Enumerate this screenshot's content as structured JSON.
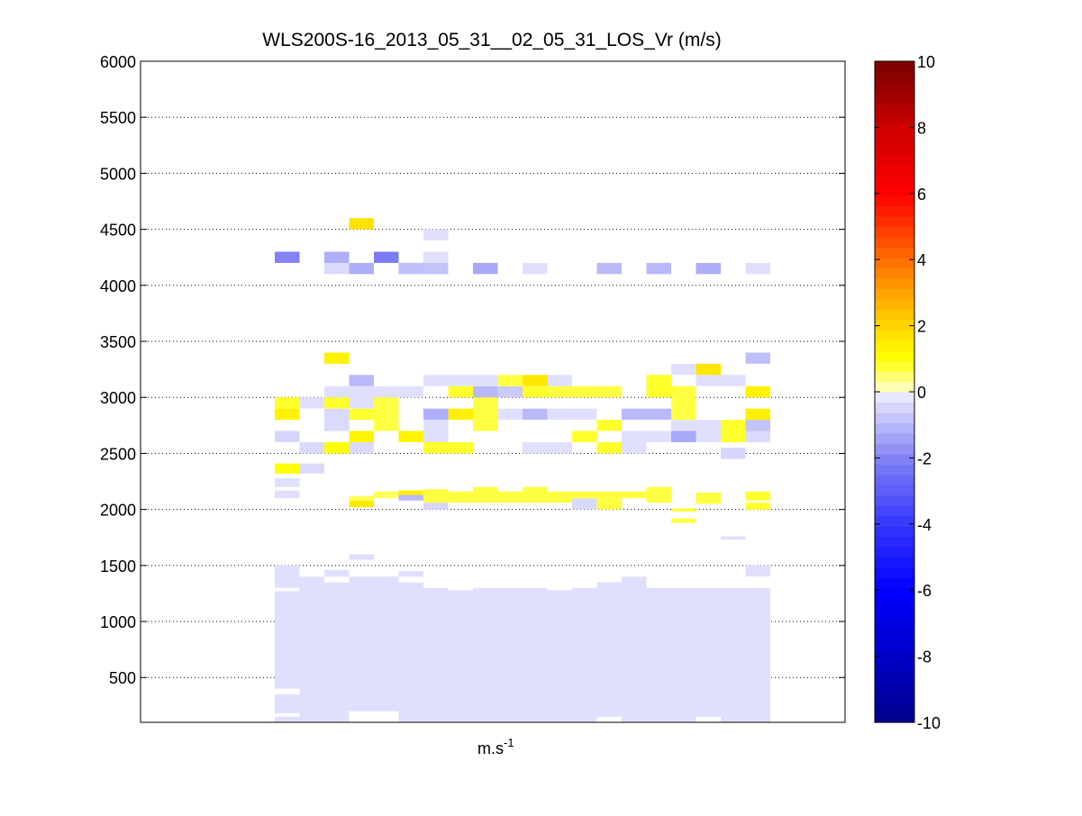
{
  "chart_data": {
    "type": "heatmap",
    "title": "WLS200S-16_2013_05_31__02_05_31_LOS_Vr (m/s)",
    "xlabel_base": "m.s",
    "xlabel_sup": "-1",
    "ylabel": "",
    "ylim": [
      100,
      6000
    ],
    "yticks": [
      500,
      1000,
      1500,
      2000,
      2500,
      3000,
      3500,
      4000,
      4500,
      5000,
      5500,
      6000
    ],
    "grid": "horizontal dotted",
    "n_columns": 28,
    "colorbar": {
      "min": -10,
      "max": 10,
      "ticks": [
        -10,
        -8,
        -6,
        -4,
        -2,
        0,
        2,
        4,
        6,
        8,
        10
      ],
      "colormap": "blue-white-yellow-red"
    },
    "cells": [
      {
        "col": 5,
        "y0": 100,
        "y1": 150,
        "v": -0.3
      },
      {
        "col": 5,
        "y0": 180,
        "y1": 350,
        "v": -0.3
      },
      {
        "col": 5,
        "y0": 400,
        "y1": 1270,
        "v": -0.3
      },
      {
        "col": 5,
        "y0": 1300,
        "y1": 1500,
        "v": -0.3
      },
      {
        "col": 5,
        "y0": 2100,
        "y1": 2170,
        "v": -0.3
      },
      {
        "col": 5,
        "y0": 2200,
        "y1": 2280,
        "v": -0.3
      },
      {
        "col": 5,
        "y0": 2320,
        "y1": 2410,
        "v": 1.0
      },
      {
        "col": 5,
        "y0": 2600,
        "y1": 2700,
        "v": -0.5
      },
      {
        "col": 5,
        "y0": 2800,
        "y1": 2900,
        "v": 1.3
      },
      {
        "col": 5,
        "y0": 2900,
        "y1": 3000,
        "v": 0.8
      },
      {
        "col": 5,
        "y0": 4200,
        "y1": 4300,
        "v": -2.0
      },
      {
        "col": 6,
        "y0": 100,
        "y1": 1400,
        "v": -0.3
      },
      {
        "col": 6,
        "y0": 2320,
        "y1": 2410,
        "v": -0.4
      },
      {
        "col": 6,
        "y0": 2500,
        "y1": 2600,
        "v": -0.4
      },
      {
        "col": 6,
        "y0": 2900,
        "y1": 3000,
        "v": -0.3
      },
      {
        "col": 7,
        "y0": 100,
        "y1": 1350,
        "v": -0.3
      },
      {
        "col": 7,
        "y0": 1400,
        "y1": 1460,
        "v": -0.3
      },
      {
        "col": 7,
        "y0": 2500,
        "y1": 2600,
        "v": 1.0
      },
      {
        "col": 7,
        "y0": 2700,
        "y1": 2900,
        "v": -0.4
      },
      {
        "col": 7,
        "y0": 2900,
        "y1": 3000,
        "v": 0.8
      },
      {
        "col": 7,
        "y0": 3000,
        "y1": 3100,
        "v": -0.3
      },
      {
        "col": 7,
        "y0": 3300,
        "y1": 3400,
        "v": 1.3
      },
      {
        "col": 7,
        "y0": 4100,
        "y1": 4200,
        "v": -0.4
      },
      {
        "col": 7,
        "y0": 4200,
        "y1": 4300,
        "v": -1.2
      },
      {
        "col": 8,
        "y0": 200,
        "y1": 1400,
        "v": -0.3
      },
      {
        "col": 8,
        "y0": 1550,
        "y1": 1600,
        "v": -0.3
      },
      {
        "col": 8,
        "y0": 2020,
        "y1": 2080,
        "v": 1.5
      },
      {
        "col": 8,
        "y0": 2080,
        "y1": 2120,
        "v": 0.6
      },
      {
        "col": 8,
        "y0": 2500,
        "y1": 2600,
        "v": -0.4
      },
      {
        "col": 8,
        "y0": 2600,
        "y1": 2700,
        "v": 1.3
      },
      {
        "col": 8,
        "y0": 2800,
        "y1": 2900,
        "v": 0.8
      },
      {
        "col": 8,
        "y0": 2900,
        "y1": 3100,
        "v": -0.3
      },
      {
        "col": 8,
        "y0": 3100,
        "y1": 3200,
        "v": -1.0
      },
      {
        "col": 8,
        "y0": 4100,
        "y1": 4200,
        "v": -1.2
      },
      {
        "col": 8,
        "y0": 4500,
        "y1": 4600,
        "v": 1.7
      },
      {
        "col": 9,
        "y0": 200,
        "y1": 1400,
        "v": -0.3
      },
      {
        "col": 9,
        "y0": 2100,
        "y1": 2160,
        "v": 0.6
      },
      {
        "col": 9,
        "y0": 2700,
        "y1": 3000,
        "v": 0.7
      },
      {
        "col": 9,
        "y0": 3000,
        "y1": 3100,
        "v": -0.3
      },
      {
        "col": 9,
        "y0": 4200,
        "y1": 4300,
        "v": -2.2
      },
      {
        "col": 10,
        "y0": 100,
        "y1": 1350,
        "v": -0.3
      },
      {
        "col": 10,
        "y0": 1400,
        "y1": 1450,
        "v": -0.3
      },
      {
        "col": 10,
        "y0": 2080,
        "y1": 2130,
        "v": -1.0
      },
      {
        "col": 10,
        "y0": 2130,
        "y1": 2170,
        "v": 1.4
      },
      {
        "col": 10,
        "y0": 2600,
        "y1": 2700,
        "v": 1.3
      },
      {
        "col": 10,
        "y0": 3000,
        "y1": 3100,
        "v": -0.3
      },
      {
        "col": 10,
        "y0": 4100,
        "y1": 4200,
        "v": -0.9
      },
      {
        "col": 11,
        "y0": 100,
        "y1": 1300,
        "v": -0.3
      },
      {
        "col": 11,
        "y0": 2000,
        "y1": 2060,
        "v": -0.5
      },
      {
        "col": 11,
        "y0": 2060,
        "y1": 2180,
        "v": 0.7
      },
      {
        "col": 11,
        "y0": 2500,
        "y1": 2600,
        "v": 0.8
      },
      {
        "col": 11,
        "y0": 2600,
        "y1": 2800,
        "v": -0.3
      },
      {
        "col": 11,
        "y0": 2800,
        "y1": 2900,
        "v": -1.2
      },
      {
        "col": 11,
        "y0": 3100,
        "y1": 3200,
        "v": -0.3
      },
      {
        "col": 11,
        "y0": 4100,
        "y1": 4200,
        "v": -0.8
      },
      {
        "col": 11,
        "y0": 4200,
        "y1": 4300,
        "v": -0.3
      },
      {
        "col": 11,
        "y0": 4400,
        "y1": 4500,
        "v": -0.3
      },
      {
        "col": 12,
        "y0": 100,
        "y1": 1280,
        "v": -0.3
      },
      {
        "col": 12,
        "y0": 2060,
        "y1": 2160,
        "v": 0.7
      },
      {
        "col": 12,
        "y0": 2500,
        "y1": 2600,
        "v": 0.8
      },
      {
        "col": 12,
        "y0": 2800,
        "y1": 2900,
        "v": 1.4
      },
      {
        "col": 12,
        "y0": 3000,
        "y1": 3100,
        "v": 0.8
      },
      {
        "col": 12,
        "y0": 3100,
        "y1": 3200,
        "v": -0.3
      },
      {
        "col": 13,
        "y0": 100,
        "y1": 1300,
        "v": -0.3
      },
      {
        "col": 13,
        "y0": 2060,
        "y1": 2200,
        "v": 0.7
      },
      {
        "col": 13,
        "y0": 2700,
        "y1": 3000,
        "v": 0.7
      },
      {
        "col": 13,
        "y0": 3000,
        "y1": 3100,
        "v": -1.0
      },
      {
        "col": 13,
        "y0": 3100,
        "y1": 3200,
        "v": -0.3
      },
      {
        "col": 13,
        "y0": 4100,
        "y1": 4200,
        "v": -1.3
      },
      {
        "col": 14,
        "y0": 100,
        "y1": 1300,
        "v": -0.3
      },
      {
        "col": 14,
        "y0": 2060,
        "y1": 2160,
        "v": 0.7
      },
      {
        "col": 14,
        "y0": 2800,
        "y1": 2900,
        "v": -0.3
      },
      {
        "col": 14,
        "y0": 3000,
        "y1": 3100,
        "v": -0.7
      },
      {
        "col": 14,
        "y0": 3100,
        "y1": 3200,
        "v": 0.7
      },
      {
        "col": 15,
        "y0": 100,
        "y1": 1300,
        "v": -0.3
      },
      {
        "col": 15,
        "y0": 2060,
        "y1": 2200,
        "v": 0.7
      },
      {
        "col": 15,
        "y0": 2500,
        "y1": 2600,
        "v": -0.3
      },
      {
        "col": 15,
        "y0": 2800,
        "y1": 2900,
        "v": -1.0
      },
      {
        "col": 15,
        "y0": 3000,
        "y1": 3100,
        "v": 0.8
      },
      {
        "col": 15,
        "y0": 3100,
        "y1": 3200,
        "v": 1.6
      },
      {
        "col": 15,
        "y0": 4100,
        "y1": 4200,
        "v": -0.3
      },
      {
        "col": 16,
        "y0": 100,
        "y1": 1280,
        "v": -0.3
      },
      {
        "col": 16,
        "y0": 2060,
        "y1": 2160,
        "v": 0.7
      },
      {
        "col": 16,
        "y0": 2500,
        "y1": 2600,
        "v": -0.3
      },
      {
        "col": 16,
        "y0": 2800,
        "y1": 2900,
        "v": -0.3
      },
      {
        "col": 16,
        "y0": 3000,
        "y1": 3100,
        "v": 0.7
      },
      {
        "col": 16,
        "y0": 3100,
        "y1": 3200,
        "v": -0.3
      },
      {
        "col": 17,
        "y0": 100,
        "y1": 1300,
        "v": -0.3
      },
      {
        "col": 17,
        "y0": 2000,
        "y1": 2100,
        "v": -0.4
      },
      {
        "col": 17,
        "y0": 2100,
        "y1": 2160,
        "v": 0.7
      },
      {
        "col": 17,
        "y0": 2600,
        "y1": 2700,
        "v": 0.8
      },
      {
        "col": 17,
        "y0": 2800,
        "y1": 2900,
        "v": -0.3
      },
      {
        "col": 17,
        "y0": 3000,
        "y1": 3100,
        "v": 0.7
      },
      {
        "col": 18,
        "y0": 150,
        "y1": 1350,
        "v": -0.3
      },
      {
        "col": 18,
        "y0": 2000,
        "y1": 2160,
        "v": 0.7
      },
      {
        "col": 18,
        "y0": 2500,
        "y1": 2600,
        "v": 0.8
      },
      {
        "col": 18,
        "y0": 2700,
        "y1": 2800,
        "v": 0.8
      },
      {
        "col": 18,
        "y0": 3000,
        "y1": 3100,
        "v": 0.7
      },
      {
        "col": 18,
        "y0": 4100,
        "y1": 4200,
        "v": -1.0
      },
      {
        "col": 19,
        "y0": 100,
        "y1": 1400,
        "v": -0.3
      },
      {
        "col": 19,
        "y0": 2100,
        "y1": 2160,
        "v": 0.7
      },
      {
        "col": 19,
        "y0": 2500,
        "y1": 2700,
        "v": -0.3
      },
      {
        "col": 19,
        "y0": 2800,
        "y1": 2900,
        "v": -1.0
      },
      {
        "col": 20,
        "y0": 100,
        "y1": 1300,
        "v": -0.3
      },
      {
        "col": 20,
        "y0": 2060,
        "y1": 2200,
        "v": 0.7
      },
      {
        "col": 20,
        "y0": 2600,
        "y1": 2700,
        "v": -0.3
      },
      {
        "col": 20,
        "y0": 2800,
        "y1": 2900,
        "v": -1.0
      },
      {
        "col": 20,
        "y0": 3000,
        "y1": 3200,
        "v": 0.8
      },
      {
        "col": 20,
        "y0": 4100,
        "y1": 4200,
        "v": -1.0
      },
      {
        "col": 21,
        "y0": 100,
        "y1": 1300,
        "v": -0.3
      },
      {
        "col": 21,
        "y0": 1880,
        "y1": 1920,
        "v": 0.7
      },
      {
        "col": 21,
        "y0": 1980,
        "y1": 2010,
        "v": 0.7
      },
      {
        "col": 21,
        "y0": 2600,
        "y1": 2700,
        "v": -1.3
      },
      {
        "col": 21,
        "y0": 2700,
        "y1": 2800,
        "v": -0.3
      },
      {
        "col": 21,
        "y0": 2800,
        "y1": 3100,
        "v": 0.7
      },
      {
        "col": 21,
        "y0": 3200,
        "y1": 3300,
        "v": -0.3
      },
      {
        "col": 22,
        "y0": 150,
        "y1": 1300,
        "v": -0.3
      },
      {
        "col": 22,
        "y0": 2050,
        "y1": 2150,
        "v": 0.7
      },
      {
        "col": 22,
        "y0": 2600,
        "y1": 2800,
        "v": -0.3
      },
      {
        "col": 22,
        "y0": 3100,
        "y1": 3200,
        "v": -0.3
      },
      {
        "col": 22,
        "y0": 3200,
        "y1": 3300,
        "v": 1.6
      },
      {
        "col": 22,
        "y0": 4100,
        "y1": 4200,
        "v": -1.2
      },
      {
        "col": 23,
        "y0": 100,
        "y1": 1300,
        "v": -0.3
      },
      {
        "col": 23,
        "y0": 1730,
        "y1": 1760,
        "v": -0.3
      },
      {
        "col": 23,
        "y0": 2450,
        "y1": 2550,
        "v": -0.5
      },
      {
        "col": 23,
        "y0": 2600,
        "y1": 2800,
        "v": 0.8
      },
      {
        "col": 23,
        "y0": 3100,
        "y1": 3200,
        "v": -0.3
      },
      {
        "col": 24,
        "y0": 100,
        "y1": 1300,
        "v": -0.3
      },
      {
        "col": 24,
        "y0": 1400,
        "y1": 1500,
        "v": -0.3
      },
      {
        "col": 24,
        "y0": 2000,
        "y1": 2060,
        "v": 0.8
      },
      {
        "col": 24,
        "y0": 2080,
        "y1": 2160,
        "v": 0.8
      },
      {
        "col": 24,
        "y0": 2600,
        "y1": 2700,
        "v": -0.4
      },
      {
        "col": 24,
        "y0": 2700,
        "y1": 2800,
        "v": -0.8
      },
      {
        "col": 24,
        "y0": 2800,
        "y1": 2900,
        "v": 1.4
      },
      {
        "col": 24,
        "y0": 3000,
        "y1": 3100,
        "v": 1.3
      },
      {
        "col": 24,
        "y0": 3300,
        "y1": 3400,
        "v": -0.9
      },
      {
        "col": 24,
        "y0": 4100,
        "y1": 4200,
        "v": -0.3
      }
    ]
  }
}
